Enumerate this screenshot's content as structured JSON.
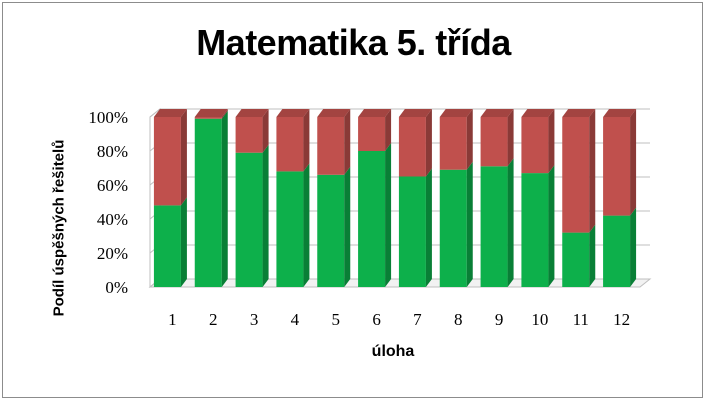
{
  "chart_data": {
    "type": "bar",
    "stacked": true,
    "title": "Matematika 5. třída",
    "xlabel": "úloha",
    "ylabel": "Podíl úspěšných řešitelů",
    "categories": [
      "1",
      "2",
      "3",
      "4",
      "5",
      "6",
      "7",
      "8",
      "9",
      "10",
      "11",
      "12"
    ],
    "yticks": [
      "0%",
      "20%",
      "40%",
      "60%",
      "80%",
      "100%"
    ],
    "ylim": [
      0,
      100
    ],
    "series": [
      {
        "values": [
          48,
          99,
          79,
          68,
          66,
          80,
          65,
          69,
          71,
          67,
          32,
          42
        ],
        "color": "#0db04b"
      },
      {
        "values": [
          52,
          1,
          21,
          32,
          34,
          20,
          35,
          31,
          29,
          33,
          68,
          58
        ],
        "color": "#c0504d"
      }
    ],
    "grid": true,
    "legend": "none"
  }
}
